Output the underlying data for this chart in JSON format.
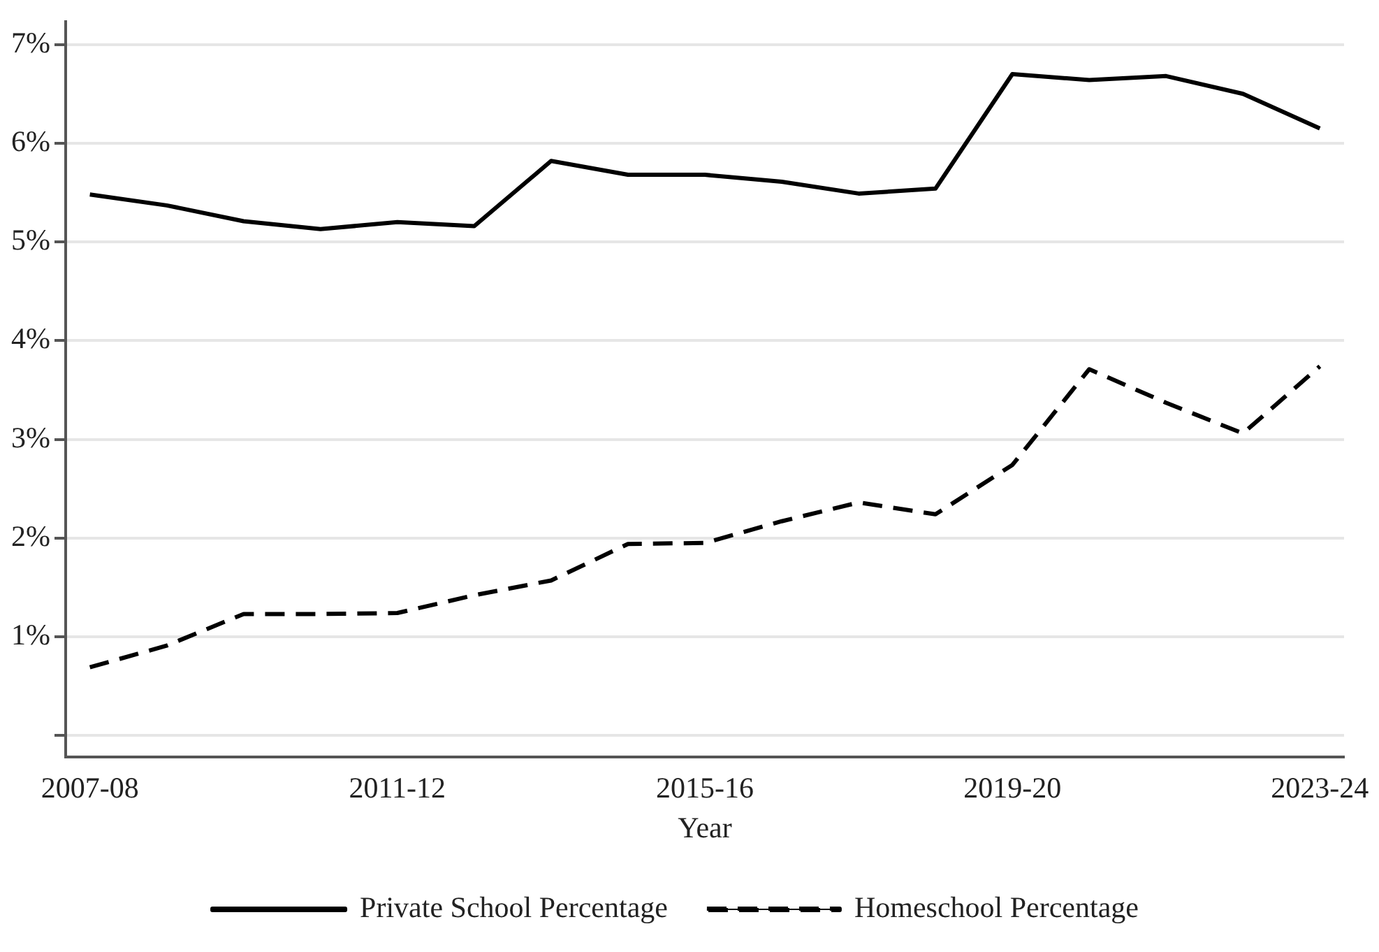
{
  "chart_data": {
    "type": "line",
    "xlabel": "Year",
    "categories": [
      "2007-08",
      null,
      null,
      null,
      "2011-12",
      null,
      null,
      null,
      "2015-16",
      null,
      null,
      null,
      "2019-20",
      null,
      null,
      null,
      "2023-24"
    ],
    "series": [
      {
        "name": "Private School Percentage",
        "color": "#000000",
        "line_style": "solid",
        "values": [
          5.48,
          5.37,
          5.21,
          5.13,
          5.2,
          5.16,
          5.82,
          5.68,
          5.68,
          5.61,
          5.49,
          5.54,
          6.7,
          6.64,
          6.68,
          6.5,
          6.15
        ]
      },
      {
        "name": "Homeschool Percentage",
        "color": "#000000",
        "line_style": "dashed",
        "values": [
          0.69,
          0.91,
          1.23,
          1.23,
          1.24,
          1.42,
          1.57,
          1.94,
          1.95,
          2.17,
          2.36,
          2.24,
          2.74,
          3.71,
          3.37,
          3.06,
          3.74
        ]
      }
    ],
    "ylim": [
      -0.22,
      7.23
    ],
    "yticks": [
      {
        "value": 0,
        "label": null
      },
      {
        "value": 1,
        "label": "1%"
      },
      {
        "value": 2,
        "label": "2%"
      },
      {
        "value": 3,
        "label": "3%"
      },
      {
        "value": 4,
        "label": "4%"
      },
      {
        "value": 5,
        "label": "5%"
      },
      {
        "value": 6,
        "label": "6%"
      },
      {
        "value": 7,
        "label": "7%"
      }
    ],
    "grid": "y",
    "legend": "bottom",
    "marker": "none"
  }
}
